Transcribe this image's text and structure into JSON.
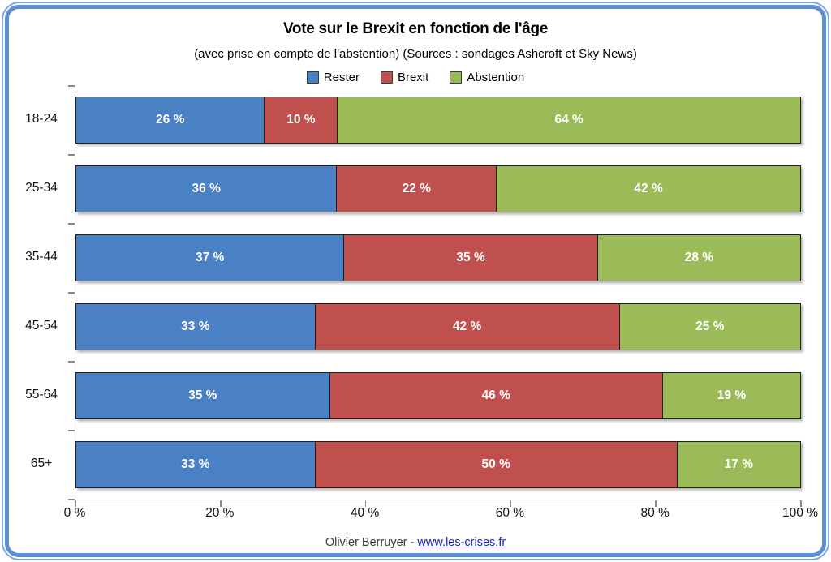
{
  "header": {
    "title": "Vote sur le Brexit en fonction de l'âge",
    "subtitle": "(avec prise en compte de l'abstention) (Sources : sondages Ashcroft et Sky News)"
  },
  "legend": [
    {
      "label": "Rester",
      "color": "#4a80c4"
    },
    {
      "label": "Brexit",
      "color": "#c0504d"
    },
    {
      "label": "Abstention",
      "color": "#9bbb59"
    }
  ],
  "chart_data": {
    "type": "bar",
    "orientation": "horizontal",
    "stacked": true,
    "title": "Vote sur le Brexit en fonction de l'âge",
    "subtitle": "(avec prise en compte de l'abstention) (Sources : sondages Ashcroft et Sky News)",
    "categories": [
      "18-24",
      "25-34",
      "35-44",
      "45-54",
      "55-64",
      "65+"
    ],
    "series": [
      {
        "name": "Rester",
        "color": "#4a80c4",
        "values": [
          26,
          36,
          37,
          33,
          35,
          33
        ]
      },
      {
        "name": "Brexit",
        "color": "#c0504d",
        "values": [
          10,
          22,
          35,
          42,
          46,
          50
        ]
      },
      {
        "name": "Abstention",
        "color": "#9bbb59",
        "values": [
          64,
          42,
          28,
          25,
          19,
          17
        ]
      }
    ],
    "value_suffix": " %",
    "x_ticks": [
      "0 %",
      "20 %",
      "40 %",
      "60 %",
      "80 %",
      "100 %"
    ],
    "xlim": [
      0,
      100
    ],
    "legend_position": "top",
    "grid": false
  },
  "frame": {
    "outer_color": "#7fa9e0",
    "inner_color": "#5b8fd6"
  },
  "footer": {
    "credit": "Olivier Berruyer",
    "separator": " - ",
    "link": "www.les-crises.fr"
  }
}
